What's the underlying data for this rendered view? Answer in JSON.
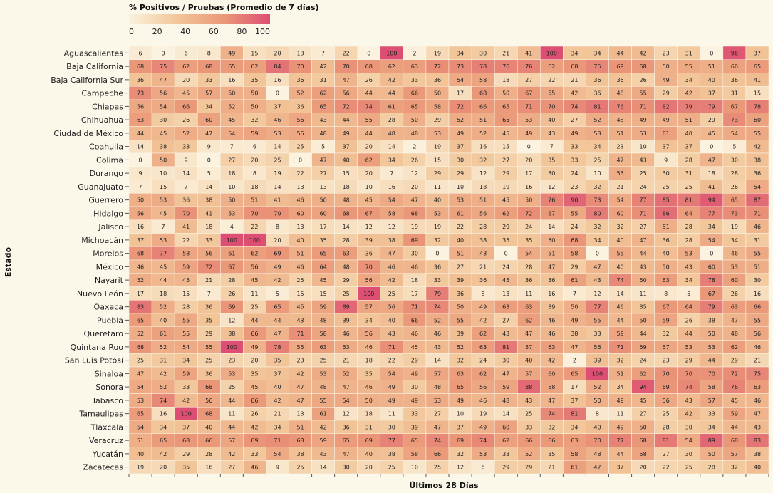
{
  "chart_data": {
    "type": "heatmap",
    "legend": {
      "title": "% Positivos / Pruebas (Promedio de 7 días)",
      "ticks": [
        0,
        20,
        40,
        60,
        80,
        100
      ],
      "range": [
        0,
        100
      ],
      "colors": [
        "#fbf3df",
        "#f2c79a",
        "#eb9978",
        "#dc4f72"
      ]
    },
    "xlabel": "Últimos 28 Días",
    "ylabel": "Estado",
    "rows": [
      {
        "state": "Aguascalientes",
        "values": [
          6,
          0,
          6,
          8,
          49,
          15,
          20,
          13,
          7,
          22,
          0,
          100,
          2,
          19,
          34,
          30,
          21,
          41,
          100,
          34,
          34,
          44,
          42,
          23,
          31,
          0,
          96,
          37
        ]
      },
      {
        "state": "Baja California",
        "values": [
          68,
          75,
          62,
          68,
          65,
          62,
          84,
          70,
          42,
          70,
          68,
          62,
          63,
          72,
          73,
          78,
          76,
          76,
          62,
          68,
          75,
          69,
          68,
          50,
          55,
          51,
          60,
          65
        ]
      },
      {
        "state": "Baja California Sur",
        "values": [
          36,
          47,
          20,
          33,
          16,
          35,
          16,
          36,
          31,
          47,
          26,
          42,
          33,
          36,
          54,
          58,
          18,
          27,
          22,
          21,
          36,
          36,
          26,
          49,
          34,
          40,
          36,
          41
        ]
      },
      {
        "state": "Campeche",
        "values": [
          73,
          56,
          45,
          57,
          50,
          50,
          0,
          52,
          62,
          56,
          44,
          44,
          66,
          50,
          17,
          68,
          50,
          67,
          55,
          42,
          36,
          48,
          55,
          29,
          42,
          37,
          31,
          15
        ]
      },
      {
        "state": "Chiapas",
        "values": [
          56,
          54,
          66,
          34,
          52,
          50,
          37,
          36,
          65,
          72,
          74,
          61,
          65,
          58,
          72,
          66,
          65,
          71,
          70,
          74,
          81,
          76,
          71,
          82,
          79,
          79,
          67,
          78
        ]
      },
      {
        "state": "Chihuahua",
        "values": [
          63,
          30,
          26,
          60,
          45,
          32,
          46,
          56,
          43,
          44,
          55,
          28,
          50,
          29,
          52,
          51,
          65,
          53,
          40,
          27,
          52,
          48,
          49,
          49,
          51,
          29,
          73,
          60
        ]
      },
      {
        "state": "Ciudad de México",
        "values": [
          44,
          45,
          52,
          47,
          54,
          59,
          53,
          56,
          48,
          49,
          44,
          48,
          48,
          53,
          49,
          52,
          45,
          49,
          43,
          49,
          53,
          51,
          53,
          61,
          40,
          45,
          54,
          55
        ]
      },
      {
        "state": "Coahuila",
        "values": [
          14,
          38,
          33,
          9,
          7,
          6,
          14,
          25,
          5,
          37,
          20,
          14,
          2,
          19,
          37,
          16,
          15,
          0,
          7,
          33,
          34,
          23,
          10,
          37,
          37,
          0,
          5,
          42
        ]
      },
      {
        "state": "Colima",
        "values": [
          0,
          50,
          9,
          0,
          27,
          20,
          25,
          0,
          47,
          40,
          62,
          34,
          26,
          15,
          30,
          32,
          27,
          20,
          35,
          33,
          25,
          47,
          43,
          9,
          28,
          47,
          30,
          38
        ]
      },
      {
        "state": "Durango",
        "values": [
          9,
          10,
          14,
          5,
          18,
          8,
          19,
          22,
          27,
          15,
          20,
          7,
          12,
          29,
          29,
          12,
          29,
          17,
          30,
          24,
          10,
          53,
          25,
          30,
          31,
          18,
          28,
          36
        ]
      },
      {
        "state": "Guanajuato",
        "values": [
          7,
          15,
          7,
          14,
          10,
          18,
          14,
          13,
          13,
          18,
          10,
          16,
          20,
          11,
          10,
          18,
          19,
          16,
          12,
          23,
          32,
          21,
          24,
          25,
          25,
          41,
          26,
          54
        ]
      },
      {
        "state": "Guerrero",
        "values": [
          50,
          53,
          36,
          38,
          50,
          51,
          41,
          46,
          50,
          48,
          45,
          54,
          47,
          40,
          53,
          51,
          45,
          50,
          76,
          90,
          73,
          54,
          77,
          85,
          81,
          94,
          65,
          87
        ]
      },
      {
        "state": "Hidalgo",
        "values": [
          56,
          45,
          70,
          41,
          53,
          70,
          70,
          60,
          60,
          68,
          67,
          58,
          68,
          53,
          61,
          56,
          62,
          72,
          67,
          55,
          80,
          60,
          71,
          86,
          64,
          77,
          73,
          71
        ]
      },
      {
        "state": "Jalisco",
        "values": [
          16,
          7,
          41,
          18,
          4,
          22,
          8,
          13,
          17,
          14,
          12,
          12,
          19,
          19,
          22,
          28,
          29,
          24,
          14,
          24,
          32,
          32,
          27,
          51,
          28,
          34,
          19,
          46
        ]
      },
      {
        "state": "Michoacán",
        "values": [
          37,
          53,
          22,
          33,
          100,
          100,
          20,
          40,
          35,
          28,
          39,
          38,
          69,
          32,
          40,
          38,
          35,
          35,
          50,
          68,
          34,
          40,
          47,
          36,
          28,
          54,
          34,
          31
        ]
      },
      {
        "state": "Morelos",
        "values": [
          68,
          77,
          58,
          56,
          61,
          62,
          69,
          51,
          65,
          63,
          36,
          47,
          30,
          0,
          51,
          48,
          0,
          54,
          51,
          58,
          0,
          55,
          44,
          40,
          53,
          0,
          46,
          55
        ]
      },
      {
        "state": "México",
        "values": [
          46,
          45,
          59,
          72,
          67,
          56,
          49,
          46,
          64,
          48,
          70,
          46,
          46,
          36,
          27,
          21,
          24,
          28,
          47,
          29,
          47,
          40,
          43,
          50,
          43,
          60,
          53,
          51
        ]
      },
      {
        "state": "Nayarit",
        "values": [
          52,
          44,
          45,
          21,
          28,
          45,
          42,
          25,
          45,
          29,
          56,
          42,
          18,
          33,
          39,
          36,
          45,
          36,
          36,
          61,
          43,
          74,
          50,
          63,
          34,
          78,
          60,
          30
        ]
      },
      {
        "state": "Nuevo León",
        "values": [
          17,
          18,
          15,
          7,
          26,
          11,
          5,
          15,
          15,
          25,
          100,
          25,
          17,
          79,
          36,
          8,
          13,
          11,
          16,
          7,
          12,
          14,
          11,
          8,
          5,
          67,
          26,
          16
        ]
      },
      {
        "state": "Oaxaca",
        "values": [
          83,
          52,
          28,
          36,
          69,
          25,
          65,
          45,
          59,
          89,
          57,
          56,
          71,
          74,
          50,
          49,
          63,
          63,
          39,
          50,
          77,
          46,
          35,
          67,
          64,
          79,
          63,
          66
        ]
      },
      {
        "state": "Puebla",
        "values": [
          65,
          40,
          55,
          35,
          12,
          44,
          44,
          43,
          48,
          39,
          34,
          40,
          66,
          52,
          55,
          42,
          27,
          62,
          46,
          49,
          55,
          44,
          50,
          59,
          26,
          38,
          47,
          55
        ]
      },
      {
        "state": "Queretaro",
        "values": [
          52,
          61,
          55,
          29,
          38,
          66,
          47,
          71,
          58,
          46,
          56,
          43,
          46,
          46,
          39,
          62,
          43,
          47,
          46,
          38,
          33,
          59,
          44,
          32,
          44,
          50,
          48,
          56
        ]
      },
      {
        "state": "Quintana Roo",
        "values": [
          68,
          52,
          54,
          55,
          100,
          49,
          78,
          55,
          63,
          53,
          46,
          71,
          45,
          43,
          52,
          63,
          81,
          57,
          63,
          47,
          56,
          71,
          59,
          57,
          53,
          53,
          62,
          46
        ]
      },
      {
        "state": "San Luis Potosí",
        "values": [
          25,
          31,
          34,
          25,
          23,
          20,
          35,
          23,
          25,
          21,
          18,
          22,
          29,
          14,
          32,
          24,
          30,
          40,
          42,
          2,
          39,
          32,
          24,
          23,
          29,
          44,
          29,
          21
        ]
      },
      {
        "state": "Sinaloa",
        "values": [
          47,
          42,
          59,
          36,
          53,
          35,
          37,
          42,
          53,
          52,
          35,
          54,
          49,
          57,
          63,
          62,
          47,
          57,
          60,
          65,
          100,
          51,
          62,
          70,
          70,
          70,
          72,
          75
        ]
      },
      {
        "state": "Sonora",
        "values": [
          54,
          52,
          33,
          68,
          25,
          45,
          40,
          47,
          48,
          47,
          46,
          49,
          30,
          48,
          65,
          56,
          59,
          88,
          58,
          17,
          52,
          34,
          94,
          69,
          74,
          58,
          76,
          63
        ]
      },
      {
        "state": "Tabasco",
        "values": [
          53,
          74,
          42,
          56,
          44,
          66,
          42,
          47,
          55,
          54,
          50,
          49,
          49,
          53,
          49,
          46,
          48,
          43,
          47,
          37,
          50,
          49,
          45,
          56,
          43,
          57,
          45,
          46
        ]
      },
      {
        "state": "Tamaulipas",
        "values": [
          65,
          16,
          100,
          68,
          11,
          26,
          21,
          13,
          61,
          12,
          18,
          11,
          33,
          27,
          10,
          19,
          14,
          25,
          74,
          81,
          8,
          11,
          27,
          25,
          42,
          33,
          59,
          47
        ]
      },
      {
        "state": "Tlaxcala",
        "values": [
          54,
          34,
          37,
          40,
          44,
          42,
          34,
          51,
          42,
          36,
          31,
          30,
          39,
          47,
          37,
          49,
          60,
          33,
          32,
          34,
          40,
          49,
          50,
          28,
          30,
          34,
          44,
          43
        ]
      },
      {
        "state": "Veracruz",
        "values": [
          51,
          65,
          68,
          66,
          57,
          69,
          71,
          68,
          59,
          65,
          69,
          77,
          65,
          74,
          69,
          74,
          62,
          66,
          66,
          63,
          70,
          77,
          68,
          81,
          54,
          89,
          68,
          83
        ]
      },
      {
        "state": "Yucatán",
        "values": [
          40,
          42,
          29,
          28,
          42,
          33,
          54,
          38,
          43,
          47,
          40,
          38,
          58,
          66,
          32,
          53,
          33,
          52,
          35,
          58,
          48,
          44,
          58,
          27,
          30,
          50,
          57,
          38
        ]
      },
      {
        "state": "Zacatecas",
        "values": [
          19,
          20,
          35,
          16,
          27,
          46,
          9,
          25,
          14,
          30,
          20,
          25,
          10,
          25,
          12,
          6,
          29,
          29,
          21,
          61,
          47,
          37,
          20,
          22,
          25,
          28,
          32,
          40
        ]
      }
    ]
  }
}
